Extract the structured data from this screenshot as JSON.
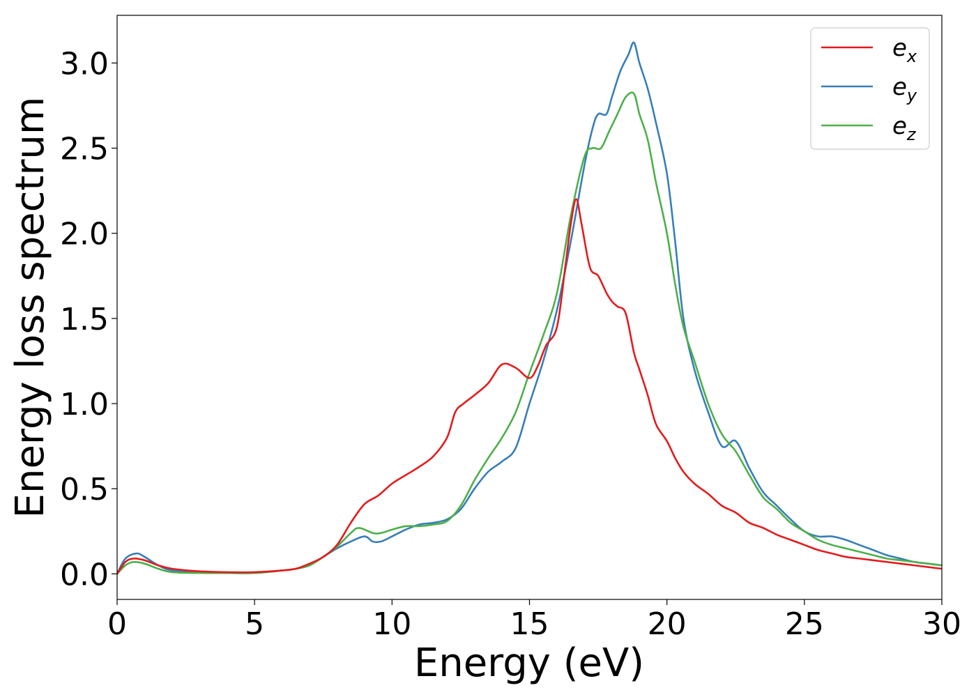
{
  "chart_data": {
    "type": "line",
    "title": "",
    "xlabel": "Energy (eV)",
    "ylabel": "Energy loss spectrum",
    "xlim": [
      0,
      30
    ],
    "ylim": [
      -0.15,
      3.28
    ],
    "xticks": [
      0,
      5,
      10,
      15,
      20,
      25,
      30
    ],
    "xtick_labels": [
      "0",
      "5",
      "10",
      "15",
      "20",
      "25",
      "30"
    ],
    "yticks": [
      0.0,
      0.5,
      1.0,
      1.5,
      2.0,
      2.5,
      3.0
    ],
    "ytick_labels": [
      "0.0",
      "0.5",
      "1.0",
      "1.5",
      "2.0",
      "2.5",
      "3.0"
    ],
    "grid": false,
    "legend_position": "top-right",
    "series": [
      {
        "name": "e",
        "subscript": "x",
        "color": "#e41a1c",
        "x": [
          0,
          0.3,
          0.6,
          1,
          1.5,
          2,
          3,
          4,
          5,
          6,
          6.5,
          7,
          7.5,
          8,
          8.5,
          9,
          9.5,
          10,
          10.5,
          11,
          11.5,
          12,
          12.3,
          12.6,
          13,
          13.5,
          14,
          14.5,
          15,
          15.3,
          15.6,
          16,
          16.3,
          16.5,
          16.7,
          16.9,
          17.2,
          17.5,
          17.8,
          18,
          18.2,
          18.5,
          18.8,
          19,
          19.3,
          19.6,
          20,
          20.3,
          20.6,
          21,
          21.5,
          22,
          22.5,
          23,
          23.5,
          24,
          24.5,
          25,
          25.5,
          26,
          26.5,
          27,
          27.5,
          28,
          28.5,
          29,
          29.5,
          30
        ],
        "y": [
          0,
          0.07,
          0.09,
          0.08,
          0.05,
          0.03,
          0.015,
          0.01,
          0.01,
          0.02,
          0.03,
          0.06,
          0.1,
          0.17,
          0.3,
          0.41,
          0.46,
          0.53,
          0.58,
          0.63,
          0.69,
          0.8,
          0.95,
          1.0,
          1.05,
          1.12,
          1.23,
          1.21,
          1.15,
          1.22,
          1.34,
          1.45,
          1.8,
          2.05,
          2.2,
          2.05,
          1.8,
          1.75,
          1.65,
          1.6,
          1.57,
          1.53,
          1.3,
          1.2,
          1.05,
          0.88,
          0.78,
          0.68,
          0.6,
          0.53,
          0.47,
          0.4,
          0.36,
          0.3,
          0.27,
          0.23,
          0.2,
          0.17,
          0.14,
          0.12,
          0.1,
          0.09,
          0.08,
          0.07,
          0.06,
          0.05,
          0.04,
          0.03
        ]
      },
      {
        "name": "e",
        "subscript": "y",
        "color": "#377eb8",
        "x": [
          0,
          0.3,
          0.7,
          1,
          1.5,
          2,
          3,
          4,
          5,
          6,
          6.5,
          7,
          7.5,
          8,
          8.5,
          9,
          9.3,
          9.6,
          10,
          10.5,
          11,
          11.5,
          12,
          12.5,
          13,
          13.5,
          14,
          14.5,
          15,
          15.5,
          16,
          16.5,
          17,
          17.3,
          17.5,
          17.8,
          18,
          18.3,
          18.6,
          18.8,
          19,
          19.3,
          19.6,
          20,
          20.3,
          20.6,
          21,
          21.5,
          22,
          22.5,
          23,
          23.5,
          24,
          24.5,
          25,
          25.5,
          26,
          26.5,
          27,
          27.5,
          28,
          28.5,
          29,
          29.5,
          30
        ],
        "y": [
          0,
          0.09,
          0.12,
          0.1,
          0.05,
          0.02,
          0.01,
          0.005,
          0.005,
          0.02,
          0.03,
          0.05,
          0.1,
          0.15,
          0.19,
          0.22,
          0.19,
          0.19,
          0.22,
          0.26,
          0.29,
          0.3,
          0.32,
          0.38,
          0.5,
          0.6,
          0.66,
          0.74,
          1.0,
          1.25,
          1.55,
          1.95,
          2.4,
          2.62,
          2.7,
          2.7,
          2.8,
          2.95,
          3.05,
          3.12,
          3.0,
          2.85,
          2.65,
          2.35,
          1.95,
          1.5,
          1.2,
          0.95,
          0.75,
          0.78,
          0.62,
          0.48,
          0.4,
          0.32,
          0.25,
          0.22,
          0.22,
          0.2,
          0.17,
          0.14,
          0.11,
          0.09,
          0.07,
          0.06,
          0.05
        ]
      },
      {
        "name": "e",
        "subscript": "z",
        "color": "#4daf4a",
        "x": [
          0,
          0.3,
          0.6,
          1,
          1.5,
          2,
          3,
          4,
          5,
          6,
          6.5,
          7,
          7.5,
          8,
          8.5,
          8.8,
          9.3,
          9.6,
          10,
          10.5,
          11,
          11.5,
          12,
          12.5,
          13,
          13.5,
          14,
          14.5,
          15,
          15.5,
          16,
          16.5,
          17,
          17.3,
          17.6,
          17.9,
          18.2,
          18.5,
          18.8,
          19,
          19.3,
          19.6,
          20,
          20.3,
          20.6,
          21,
          21.5,
          22,
          22.5,
          23,
          23.5,
          24,
          24.5,
          25,
          25.5,
          26,
          26.5,
          27,
          27.5,
          28,
          28.5,
          29,
          29.5,
          30
        ],
        "y": [
          0,
          0.05,
          0.07,
          0.06,
          0.03,
          0.01,
          0.005,
          0.005,
          0.005,
          0.02,
          0.03,
          0.05,
          0.1,
          0.16,
          0.24,
          0.27,
          0.24,
          0.24,
          0.26,
          0.28,
          0.28,
          0.29,
          0.31,
          0.4,
          0.55,
          0.68,
          0.8,
          0.95,
          1.18,
          1.4,
          1.65,
          2.1,
          2.45,
          2.5,
          2.5,
          2.6,
          2.7,
          2.8,
          2.82,
          2.7,
          2.55,
          2.3,
          2.0,
          1.7,
          1.45,
          1.25,
          1.0,
          0.82,
          0.72,
          0.58,
          0.45,
          0.38,
          0.3,
          0.25,
          0.2,
          0.17,
          0.15,
          0.13,
          0.11,
          0.09,
          0.08,
          0.07,
          0.06,
          0.05
        ]
      }
    ]
  }
}
